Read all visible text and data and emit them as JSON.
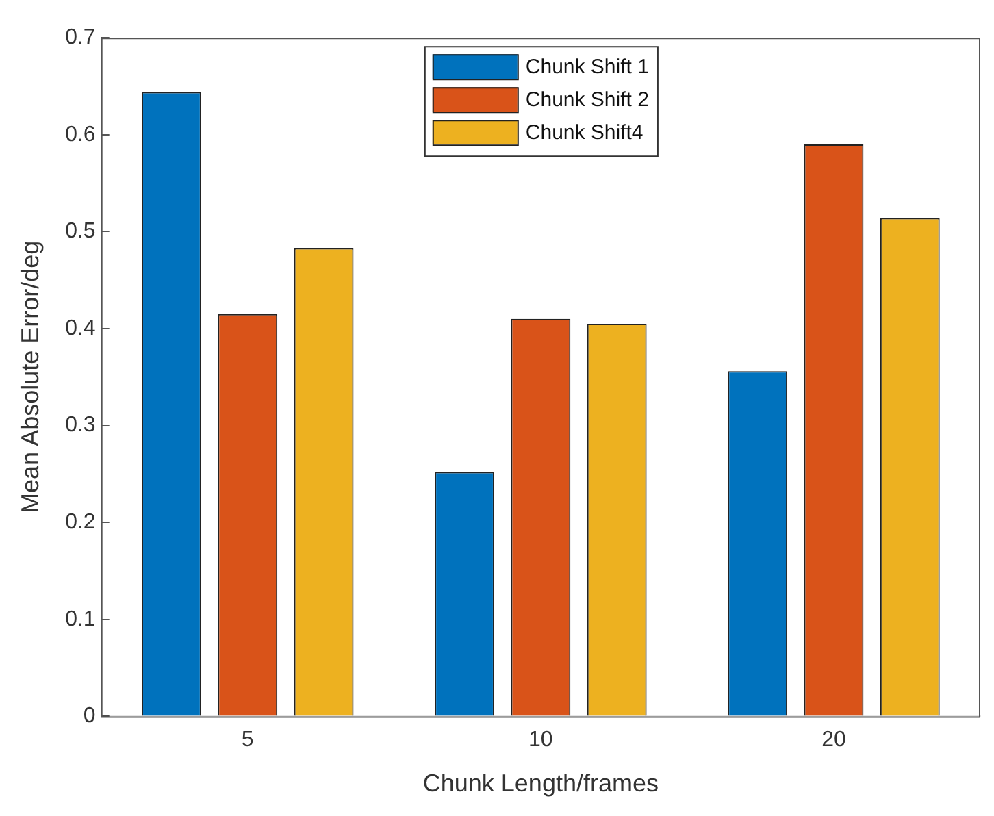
{
  "chart_data": {
    "type": "bar",
    "xlabel": "Chunk Length/frames",
    "ylabel": "Mean Absolute Error/deg",
    "categories": [
      "5",
      "10",
      "20"
    ],
    "series": [
      {
        "name": "Chunk Shift 1",
        "color": "#0072bd",
        "values": [
          0.644,
          0.252,
          0.356
        ]
      },
      {
        "name": "Chunk Shift 2",
        "color": "#d95319",
        "values": [
          0.415,
          0.41,
          0.59
        ]
      },
      {
        "name": "Chunk Shift4",
        "color": "#edb120",
        "values": [
          0.483,
          0.405,
          0.514
        ]
      }
    ],
    "ylim": [
      0,
      0.7
    ],
    "yticks": [
      0,
      0.1,
      0.2,
      0.3,
      0.4,
      0.5,
      0.6,
      0.7
    ],
    "grid": false,
    "legend": "top"
  }
}
